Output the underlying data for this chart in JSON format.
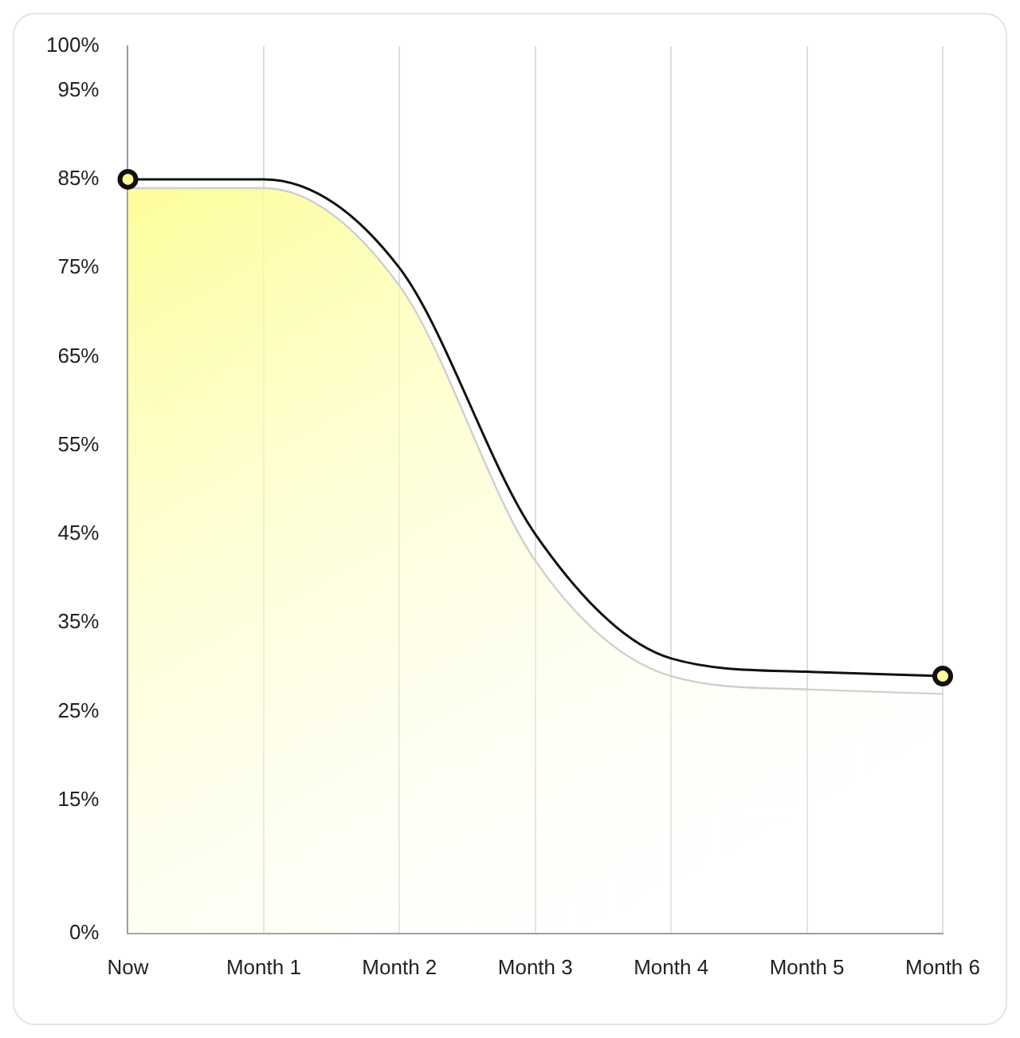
{
  "chart_data": {
    "type": "line",
    "categories": [
      "Now",
      "Month 1",
      "Month 2",
      "Month 3",
      "Month 4",
      "Month 5",
      "Month 6"
    ],
    "series": [
      {
        "type": "area",
        "color": "#fdfd80",
        "values": [
          84,
          84,
          73,
          42,
          29,
          27.5,
          27
        ],
        "marker": "none"
      },
      {
        "type": "line",
        "color": "#111111",
        "values": [
          85,
          85,
          75,
          45,
          31,
          29.5,
          29
        ],
        "marker": "none"
      },
      {
        "type": "scatter",
        "color": "#111111",
        "values": [
          85,
          null,
          null,
          null,
          null,
          null,
          29
        ],
        "marker": "circle"
      }
    ],
    "ylim": [
      0,
      100
    ],
    "yticks": [
      {
        "value": 0,
        "label": "0%"
      },
      {
        "value": 15,
        "label": "15%"
      },
      {
        "value": 25,
        "label": "25%"
      },
      {
        "value": 35,
        "label": "35%"
      },
      {
        "value": 45,
        "label": "45%"
      },
      {
        "value": 55,
        "label": "55%"
      },
      {
        "value": 65,
        "label": "65%"
      },
      {
        "value": 75,
        "label": "75%"
      },
      {
        "value": 85,
        "label": "85%"
      },
      {
        "value": 95,
        "label": "95%"
      },
      {
        "value": 100,
        "label": "100%"
      }
    ],
    "grid": "x",
    "legend": false
  }
}
